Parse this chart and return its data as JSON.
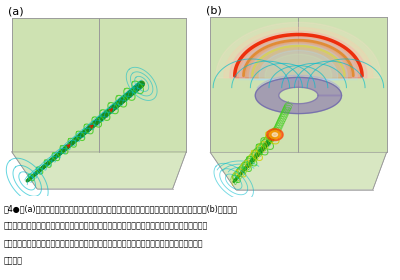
{
  "panel_a_label": "(a)",
  "panel_b_label": "(b)",
  "bg_color": "#ffffff",
  "wall_color": "#c8dea8",
  "wall_alpha": 0.88,
  "wall_edge_color": "#999999",
  "caption_lines": [
    "図4●　(a)太陽コロナ中に配置された「フラックスチューブ」。線は磁力線を表している。(b)「フラッ",
    "クスチューブ」がキンクモードに対して不安定化した結果、上空へ放出される様子を再現してい",
    "る。赤いカラーは密度が強められている領域で、青い等値面は密度が減少している領域を示し",
    "ている。"
  ],
  "caption_fontsize": 5.8,
  "label_fontsize": 8,
  "green_dark": "#1a8c1a",
  "green_bright": "#44cc22",
  "cyan_color": "#00bbcc",
  "blue_color": "#3399cc",
  "yellow_color": "#cccc00",
  "red_color": "#cc2200",
  "blue_iso": "#8888bb",
  "purple_iso": "#9977aa",
  "rainbow_red": "#ee2200",
  "rainbow_orange": "#ee7700",
  "rainbow_yellow": "#eecc00",
  "rainbow_lightyellow": "#eeff66",
  "rainbow_pink": "#ffaaaa"
}
